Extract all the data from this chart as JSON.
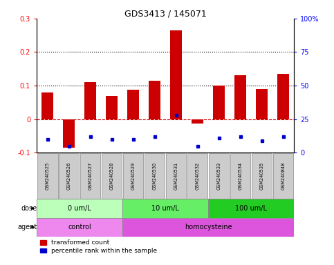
{
  "title": "GDS3413 / 145071",
  "samples": [
    "GSM240525",
    "GSM240526",
    "GSM240527",
    "GSM240528",
    "GSM240529",
    "GSM240530",
    "GSM240531",
    "GSM240532",
    "GSM240533",
    "GSM240534",
    "GSM240535",
    "GSM240848"
  ],
  "red_values": [
    0.08,
    -0.085,
    0.11,
    0.07,
    0.088,
    0.115,
    0.265,
    -0.012,
    0.1,
    0.132,
    0.09,
    0.135
  ],
  "blue_values_right": [
    10,
    5,
    12,
    10,
    10,
    12,
    28,
    5,
    11,
    12,
    9,
    12
  ],
  "ylim_left": [
    -0.1,
    0.3
  ],
  "ylim_right": [
    0,
    100
  ],
  "yticks_left": [
    -0.1,
    0.0,
    0.1,
    0.2,
    0.3
  ],
  "yticks_right": [
    0,
    25,
    50,
    75,
    100
  ],
  "ytick_labels_left": [
    "-0.1",
    "0",
    "0.1",
    "0.2",
    "0.3"
  ],
  "ytick_labels_right": [
    "0",
    "25",
    "50",
    "75",
    "100%"
  ],
  "hlines": [
    0.1,
    0.2
  ],
  "dose_groups": [
    {
      "label": "0 um/L",
      "start": 0,
      "end": 4,
      "color": "#bbffbb"
    },
    {
      "label": "10 um/L",
      "start": 4,
      "end": 8,
      "color": "#66ee66"
    },
    {
      "label": "100 um/L",
      "start": 8,
      "end": 12,
      "color": "#22cc22"
    }
  ],
  "agent_groups": [
    {
      "label": "control",
      "start": 0,
      "end": 4,
      "color": "#ee88ee"
    },
    {
      "label": "homocysteine",
      "start": 4,
      "end": 12,
      "color": "#dd55dd"
    }
  ],
  "red_color": "#cc0000",
  "blue_color": "#0000cc",
  "bar_width": 0.55,
  "zero_line_color": "#cc0000",
  "label_box_color": "#cccccc",
  "label_box_edge": "#999999",
  "legend_red": "transformed count",
  "legend_blue": "percentile rank within the sample"
}
